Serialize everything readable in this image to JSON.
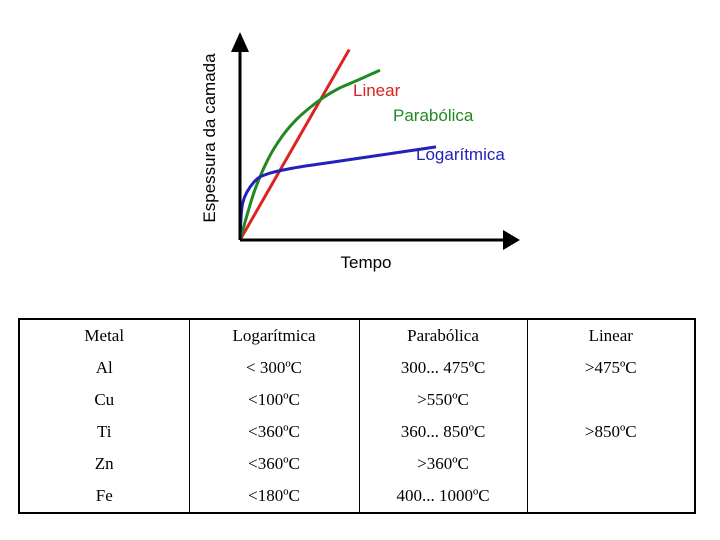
{
  "chart_data": {
    "type": "line",
    "title": "",
    "xlabel": "Tempo",
    "ylabel": "Espessura da camada",
    "xlim": [
      0,
      10
    ],
    "ylim": [
      0,
      10
    ],
    "grid": false,
    "series": [
      {
        "name": "Linear",
        "color": "#dd2222",
        "x": [
          0,
          3.9
        ],
        "y": [
          0,
          9.2
        ]
      },
      {
        "name": "Parabólica",
        "color": "#228822",
        "x": [
          0,
          0.5,
          1,
          1.5,
          2,
          2.5,
          3,
          3.5,
          4,
          4.5,
          5
        ],
        "y": [
          0,
          2.3,
          3.9,
          5.0,
          5.8,
          6.4,
          6.9,
          7.3,
          7.6,
          7.9,
          8.2
        ]
      },
      {
        "name": "Logarítmica",
        "color": "#2222bb",
        "x": [
          0,
          0.1,
          0.5,
          1,
          2,
          3,
          4,
          5,
          6,
          7
        ],
        "y": [
          0,
          1.8,
          2.8,
          3.2,
          3.5,
          3.7,
          3.9,
          4.1,
          4.3,
          4.5
        ]
      }
    ]
  },
  "table": {
    "rows": [
      [
        "Metal",
        "Logarítmica",
        "Parabólica",
        "Linear"
      ],
      [
        "Al",
        "< 300ºC",
        "300... 475ºC",
        ">475ºC"
      ],
      [
        "Cu",
        "<100ºC",
        ">550ºC",
        ""
      ],
      [
        "Ti",
        "<360ºC",
        "360... 850ºC",
        ">850ºC"
      ],
      [
        "Zn",
        "<360ºC",
        ">360ºC",
        ""
      ],
      [
        "Fe",
        "<180ºC",
        "400... 1000ºC",
        ""
      ]
    ]
  }
}
